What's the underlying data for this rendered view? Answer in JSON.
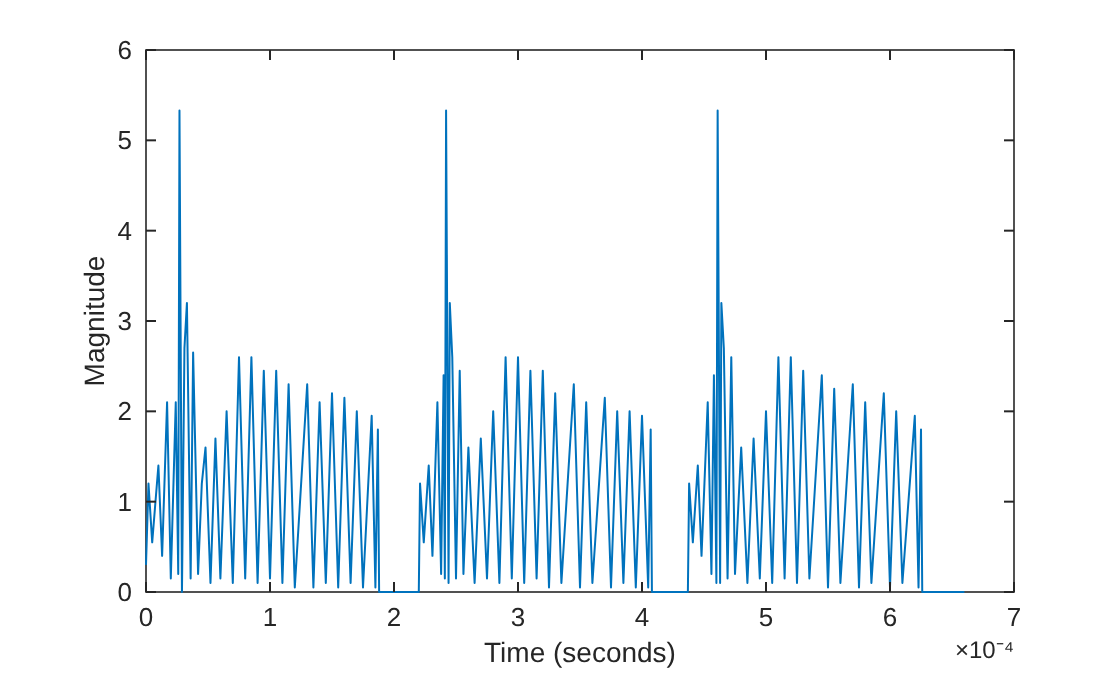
{
  "chart_data": {
    "type": "line",
    "xlabel": "Time (seconds)",
    "ylabel": "Magnitude",
    "annotations": [
      "×10⁻⁴"
    ],
    "xlim": [
      0,
      7
    ],
    "xticks": [
      0,
      1,
      2,
      3,
      4,
      5,
      6,
      7
    ],
    "ylim": [
      0,
      6
    ],
    "yticks": [
      0,
      1,
      2,
      3,
      4,
      5,
      6
    ],
    "grid": false,
    "marker": "none",
    "line_style": "solid",
    "series": [
      {
        "color": "#0072bd",
        "x": [
          0,
          0.02,
          0.05,
          0.1,
          0.13,
          0.17,
          0.2,
          0.24,
          0.26,
          0.27,
          0.29,
          0.31,
          0.33,
          0.36,
          0.38,
          0.42,
          0.45,
          0.48,
          0.52,
          0.56,
          0.6,
          0.65,
          0.7,
          0.75,
          0.8,
          0.85,
          0.9,
          0.95,
          1.0,
          1.05,
          1.1,
          1.15,
          1.2,
          1.3,
          1.35,
          1.4,
          1.45,
          1.5,
          1.55,
          1.6,
          1.65,
          1.7,
          1.75,
          1.82,
          1.85,
          1.87,
          1.88,
          2.19,
          2.2,
          2.21,
          2.24,
          2.28,
          2.31,
          2.35,
          2.38,
          2.4,
          2.41,
          2.42,
          2.44,
          2.45,
          2.47,
          2.5,
          2.53,
          2.56,
          2.6,
          2.65,
          2.7,
          2.75,
          2.8,
          2.85,
          2.9,
          2.95,
          3.0,
          3.05,
          3.1,
          3.15,
          3.2,
          3.25,
          3.3,
          3.35,
          3.45,
          3.5,
          3.55,
          3.6,
          3.7,
          3.75,
          3.8,
          3.85,
          3.9,
          3.95,
          4.0,
          4.05,
          4.07,
          4.08,
          4.37,
          4.38,
          4.41,
          4.45,
          4.48,
          4.53,
          4.56,
          4.58,
          4.6,
          4.61,
          4.63,
          4.64,
          4.66,
          4.69,
          4.72,
          4.75,
          4.8,
          4.85,
          4.9,
          4.95,
          5.0,
          5.05,
          5.1,
          5.15,
          5.2,
          5.25,
          5.3,
          5.35,
          5.45,
          5.5,
          5.55,
          5.6,
          5.7,
          5.75,
          5.8,
          5.85,
          5.95,
          6.0,
          6.05,
          6.1,
          6.2,
          6.23,
          6.25,
          6.26,
          6.6
        ],
        "values": [
          0.3,
          1.2,
          0.55,
          1.4,
          0.4,
          2.1,
          0.15,
          2.1,
          0.2,
          5.33,
          0,
          2.7,
          3.2,
          0.15,
          2.65,
          0.2,
          1.2,
          1.6,
          0.1,
          1.7,
          0.15,
          2.0,
          0.1,
          2.6,
          0.15,
          2.6,
          0.1,
          2.45,
          0.15,
          2.45,
          0.1,
          2.3,
          0.05,
          2.3,
          0.05,
          2.1,
          0.1,
          2.2,
          0.05,
          2.15,
          0.1,
          2.0,
          0.05,
          1.95,
          0.05,
          1.8,
          0,
          0,
          0,
          1.2,
          0.55,
          1.4,
          0.4,
          2.1,
          0.2,
          2.4,
          0.15,
          5.33,
          0.1,
          3.2,
          2.6,
          0.15,
          2.45,
          0.2,
          1.6,
          0.1,
          1.7,
          0.15,
          2.0,
          0.1,
          2.6,
          0.15,
          2.6,
          0.1,
          2.45,
          0.15,
          2.45,
          0.05,
          2.2,
          0.1,
          2.3,
          0.05,
          2.1,
          0.1,
          2.15,
          0.05,
          2.0,
          0.1,
          2.0,
          0.05,
          1.95,
          0.05,
          1.8,
          0,
          0,
          1.2,
          0.55,
          1.4,
          0.4,
          2.1,
          0.2,
          2.4,
          0.1,
          5.33,
          0.1,
          3.2,
          2.7,
          0.15,
          2.6,
          0.2,
          1.6,
          0.1,
          1.7,
          0.15,
          2.0,
          0.1,
          2.6,
          0.15,
          2.6,
          0.1,
          2.45,
          0.15,
          2.4,
          0.05,
          2.25,
          0.1,
          2.3,
          0.05,
          2.1,
          0.1,
          2.2,
          0.05,
          2.0,
          0.1,
          1.95,
          0.05,
          1.8,
          0,
          0
        ]
      }
    ]
  }
}
